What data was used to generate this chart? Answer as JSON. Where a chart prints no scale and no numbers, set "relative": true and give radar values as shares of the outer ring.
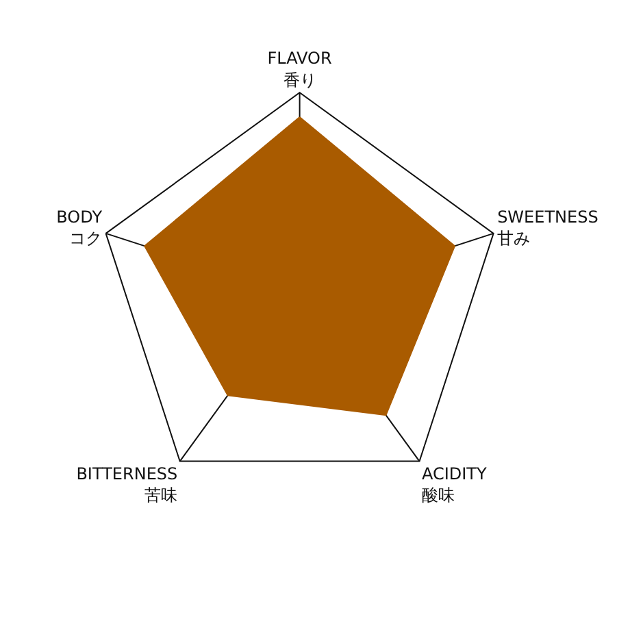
{
  "chart_data": {
    "type": "radar",
    "relative": true,
    "categories": [
      "FLAVOR\n香り",
      "SWEETNESS\n甘み",
      "ACIDITY\n酸味",
      "BITTERNESS\n苦味",
      "BODY\nコク"
    ],
    "series": [
      {
        "color": "#a95b00",
        "values": [
          0.88,
          0.8,
          0.72,
          0.6,
          0.8
        ]
      }
    ]
  }
}
